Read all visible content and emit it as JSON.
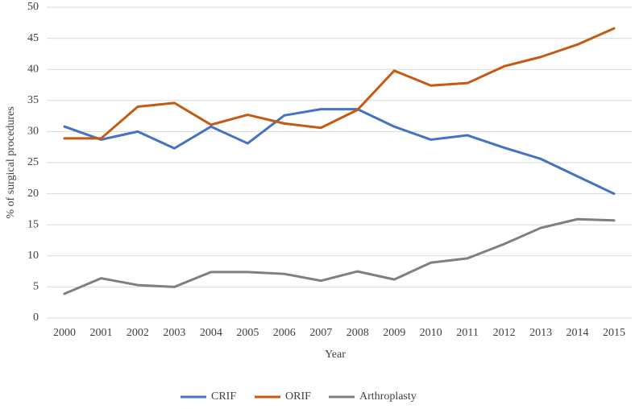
{
  "chart_data": {
    "type": "line",
    "x_label": "Year",
    "y_label": "% of surgical procedures",
    "categories": [
      "2000",
      "2001",
      "2002",
      "2003",
      "2004",
      "2005",
      "2006",
      "2007",
      "2008",
      "2009",
      "2010",
      "2011",
      "2012",
      "2013",
      "2014",
      "2015"
    ],
    "series": [
      {
        "name": "CRIF",
        "color": "#4472c4",
        "values": [
          30.8,
          28.7,
          30.0,
          27.3,
          30.8,
          28.1,
          32.6,
          33.6,
          33.6,
          30.8,
          28.7,
          29.4,
          27.4,
          25.6,
          22.8,
          20.0
        ]
      },
      {
        "name": "ORIF",
        "color": "#c55a11",
        "values": [
          28.9,
          28.9,
          34.0,
          34.6,
          31.1,
          32.7,
          31.3,
          30.6,
          33.5,
          39.8,
          37.4,
          37.8,
          40.5,
          42.0,
          44.0,
          46.6
        ]
      },
      {
        "name": "Arthroplasty",
        "color": "#7f7f7f",
        "values": [
          3.9,
          6.4,
          5.3,
          5.0,
          7.4,
          7.4,
          7.1,
          6.0,
          7.5,
          6.2,
          8.9,
          9.6,
          11.9,
          14.5,
          15.9,
          15.7
        ]
      }
    ],
    "ylim": [
      0,
      50
    ],
    "yticks": [
      0,
      5,
      10,
      15,
      20,
      25,
      30,
      35,
      40,
      45,
      50
    ],
    "grid": true,
    "legend": "bottom"
  }
}
